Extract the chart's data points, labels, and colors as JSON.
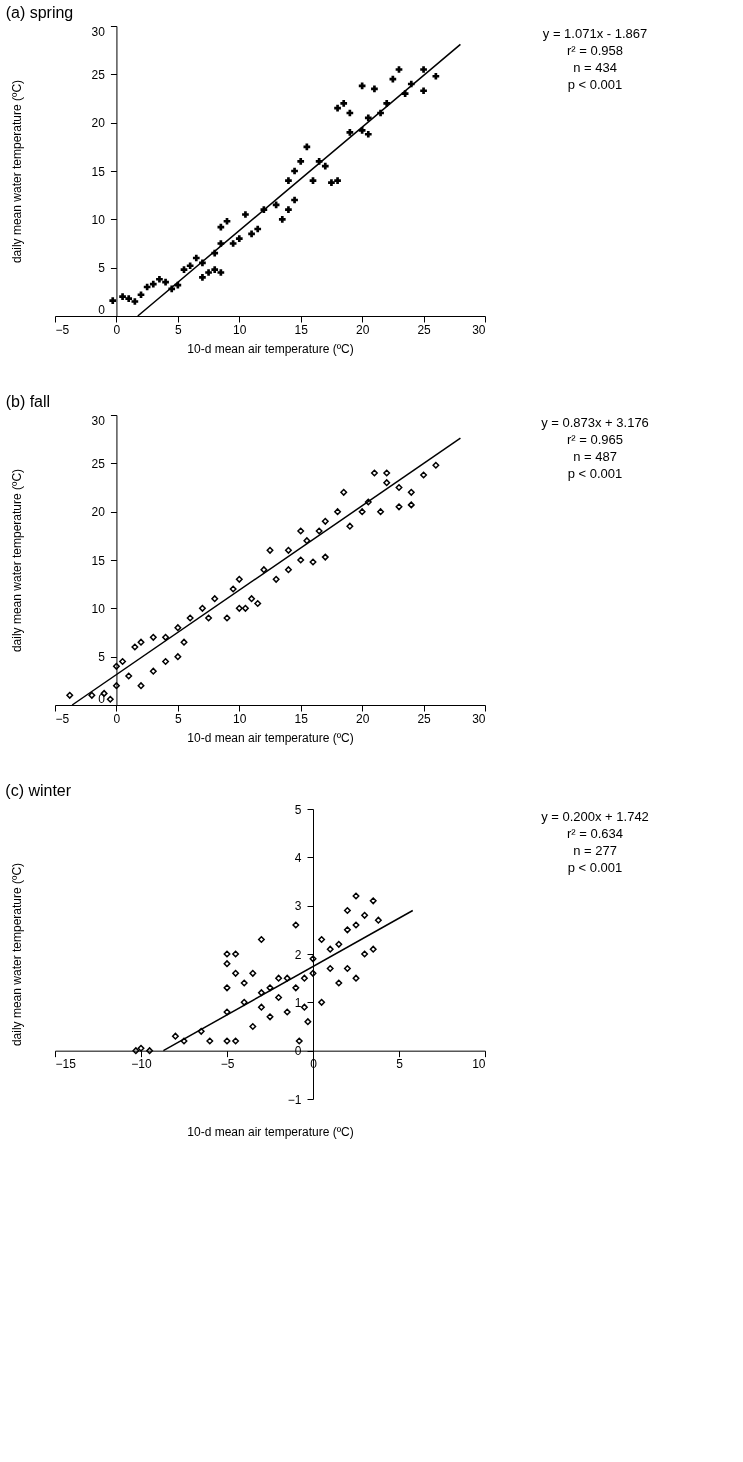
{
  "chart_data": [
    {
      "type": "scatter",
      "title": "(a) spring",
      "xlabel": "10-d mean air temperature (ºC)",
      "ylabel": "daily mean water temperature (ºC)",
      "annotations": [
        "y = 1.071x - 1.867",
        "r² = 0.958",
        "n = 434",
        "p < 0.001"
      ],
      "xlim": [
        -5,
        30
      ],
      "xticks": [
        -5,
        0,
        5,
        10,
        15,
        20,
        25,
        30
      ],
      "ylim": [
        0,
        30
      ],
      "yticks": [
        0,
        5,
        10,
        15,
        20,
        25,
        30
      ],
      "grid": false,
      "series": [
        {
          "marker": "cross",
          "color": "#000000",
          "x": [
            -0.3,
            0.5,
            1,
            1.5,
            2,
            2.5,
            3,
            3.5,
            4,
            4.5,
            5,
            5.5,
            6,
            6.5,
            7,
            7,
            7.5,
            8,
            8.5,
            8,
            8.5,
            8.5,
            9,
            9.5,
            10,
            10.5,
            11,
            11.5,
            12,
            13,
            13.5,
            14,
            14.5,
            14,
            14.5,
            15,
            15.5,
            16,
            16.5,
            17,
            17.5,
            18,
            18,
            18.5,
            19,
            19,
            20,
            20.5,
            21,
            21.5,
            22,
            22.5,
            23,
            23.5,
            24,
            25,
            25,
            26,
            20,
            20.5
          ],
          "values": [
            1.6,
            2.0,
            1.8,
            1.5,
            2.2,
            3,
            3.3,
            3.8,
            3.5,
            2.8,
            3.2,
            4.8,
            5.2,
            6,
            5.5,
            4,
            4.5,
            4.8,
            4.5,
            6.5,
            7.5,
            9.2,
            9.8,
            7.5,
            8,
            10.5,
            8.5,
            9,
            11,
            11.5,
            10,
            11,
            12,
            14,
            15,
            16,
            17.5,
            14,
            16,
            15.5,
            13.8,
            14,
            21.5,
            22,
            21,
            19,
            19.2,
            20.5,
            23.5,
            21,
            22,
            24.5,
            25.5,
            23,
            24,
            25.5,
            23.3,
            24.8,
            23.8,
            18.8
          ]
        },
        {
          "type": "line",
          "color": "#000000",
          "x": [
            1.74,
            28
          ],
          "values": [
            0,
            28.1
          ]
        }
      ]
    },
    {
      "type": "scatter",
      "title": "(b) fall",
      "xlabel": "10-d mean air temperature (ºC)",
      "ylabel": "daily mean water temperature (ºC)",
      "annotations": [
        "y = 0.873x + 3.176",
        "r² = 0.965",
        "n = 487",
        "p < 0.001"
      ],
      "xlim": [
        -5,
        30
      ],
      "xticks": [
        -5,
        0,
        5,
        10,
        15,
        20,
        25,
        30
      ],
      "ylim": [
        0,
        30
      ],
      "yticks": [
        0,
        5,
        10,
        15,
        20,
        25,
        30
      ],
      "grid": false,
      "series": [
        {
          "marker": "diamond",
          "color": "#000000",
          "x": [
            -3.8,
            -2,
            -1,
            -0.5,
            0,
            0,
            0.5,
            1,
            1.5,
            2,
            2,
            3,
            3,
            4,
            4,
            5,
            5,
            5.5,
            6,
            7,
            7.5,
            8,
            9,
            9.5,
            10,
            10,
            10.5,
            11,
            11.5,
            12,
            12.5,
            13,
            14,
            14,
            15,
            15,
            15.5,
            16,
            16.5,
            17,
            17,
            18,
            18.5,
            19,
            20,
            20.5,
            21,
            21.5,
            22,
            22,
            23,
            23,
            24,
            24,
            25,
            26
          ],
          "values": [
            1,
            1,
            1.2,
            0.6,
            2,
            4,
            4.5,
            3,
            6,
            6.5,
            2,
            7,
            3.5,
            4.5,
            7,
            8,
            5,
            6.5,
            9,
            10,
            9,
            11,
            9,
            12,
            13,
            10,
            10,
            11,
            10.5,
            14,
            16,
            13,
            16,
            14,
            18,
            15,
            17,
            14.8,
            18,
            19,
            15.3,
            20,
            22,
            18.5,
            20,
            21,
            24,
            20,
            24,
            23,
            20.5,
            22.5,
            20.7,
            22,
            23.8,
            24.8
          ]
        },
        {
          "type": "line",
          "color": "#000000",
          "x": [
            -3.6,
            28
          ],
          "values": [
            0,
            27.6
          ]
        }
      ]
    },
    {
      "type": "scatter",
      "title": "(c) winter",
      "xlabel": "10-d mean air temperature (ºC)",
      "ylabel": "daily mean water temperature (ºC)",
      "annotations": [
        "y = 0.200x + 1.742",
        "r² = 0.634",
        "n = 277",
        "p < 0.001"
      ],
      "xlim": [
        -15,
        10
      ],
      "xticks": [
        -15,
        -10,
        -5,
        0,
        5,
        10
      ],
      "ylim": [
        -1,
        5
      ],
      "yticks": [
        -1,
        0,
        1,
        2,
        3,
        4,
        5
      ],
      "grid": false,
      "series": [
        {
          "marker": "diamond",
          "color": "#000000",
          "x": [
            -10.3,
            -10,
            -9.5,
            -8,
            -7.5,
            -6.5,
            -6,
            -5,
            -4.5,
            -5,
            -5,
            -5,
            -5,
            -4.5,
            -4.5,
            -4,
            -4,
            -3.5,
            -3.5,
            -3,
            -3,
            -3,
            -2.5,
            -2.5,
            -2,
            -2,
            -1.5,
            -1.5,
            -1,
            -1,
            -0.8,
            -0.5,
            -0.5,
            -0.3,
            0,
            0,
            0.5,
            0.5,
            1,
            1,
            1.5,
            1.5,
            2,
            2,
            2,
            2.5,
            2.5,
            2.5,
            3,
            3,
            3.5,
            3.5,
            3.8
          ],
          "values": [
            0,
            0.05,
            0,
            0.3,
            0.2,
            0.4,
            0.2,
            0.2,
            0.2,
            0.8,
            1.3,
            1.8,
            2,
            1.6,
            2,
            1.4,
            1,
            0.5,
            1.6,
            1.2,
            0.9,
            2.3,
            1.3,
            0.7,
            1.5,
            1.1,
            1.5,
            0.8,
            1.3,
            2.6,
            0.2,
            0.9,
            1.5,
            0.6,
            1.9,
            1.6,
            2.3,
            1,
            1.7,
            2.1,
            2.2,
            1.4,
            2.5,
            1.7,
            2.9,
            3.2,
            2.6,
            1.5,
            2.8,
            2,
            3.1,
            2.1,
            2.7
          ]
        },
        {
          "type": "line",
          "color": "#000000",
          "x": [
            -8.7,
            5.8
          ],
          "values": [
            0,
            2.9
          ]
        }
      ]
    }
  ]
}
